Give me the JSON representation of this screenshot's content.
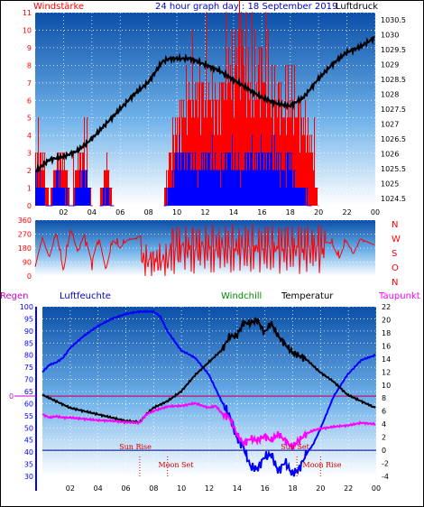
{
  "chart_data": [
    {
      "type": "line",
      "title": "24 hour graph day : 18 September 2019",
      "left_label": "Windstärke",
      "right_label": "Luftdruck",
      "x_ticks": [
        "02",
        "04",
        "06",
        "08",
        "10",
        "12",
        "14",
        "16",
        "18",
        "20",
        "22",
        "00"
      ],
      "y_left_ticks": [
        "0",
        "1",
        "2",
        "3",
        "4",
        "5",
        "6",
        "7",
        "8",
        "9",
        "10",
        "11"
      ],
      "y_right_ticks": [
        "1024.5",
        "1025",
        "1025.5",
        "1026",
        "1026.5",
        "1027",
        "1027.5",
        "1028",
        "1028.5",
        "1029",
        "1029.5",
        "1030",
        "1030.5"
      ],
      "ylim_left": [
        0,
        11
      ],
      "ylim_right": [
        1024.25,
        1030.75
      ],
      "series": [
        {
          "name": "Luftdruck",
          "color": "#000000",
          "axis": "right",
          "x": [
            0,
            1,
            2,
            3,
            4,
            5,
            6,
            7,
            8,
            9,
            9.5,
            10,
            11,
            12,
            13,
            14,
            15,
            16,
            17,
            18,
            19,
            20,
            21,
            22,
            23,
            24
          ],
          "values": [
            1025.4,
            1025.8,
            1025.9,
            1026.1,
            1026.5,
            1027.0,
            1027.5,
            1028.0,
            1028.4,
            1029.1,
            1029.2,
            1029.2,
            1029.2,
            1029.0,
            1028.8,
            1028.5,
            1028.2,
            1027.9,
            1027.7,
            1027.6,
            1027.9,
            1028.5,
            1029.0,
            1029.4,
            1029.6,
            1029.9
          ]
        },
        {
          "name": "Windstärke (Böen)",
          "color": "#ff0000",
          "axis": "left",
          "x": [
            0,
            0.5,
            1,
            1.5,
            2,
            2.5,
            3,
            3.5,
            4,
            4.5,
            5,
            5.5,
            6,
            6.5,
            7,
            7.5,
            8,
            8.5,
            9,
            9.5,
            10,
            10.5,
            11,
            11.5,
            12,
            12.5,
            13,
            13.5,
            14,
            14.5,
            15,
            15.5,
            16,
            16.5,
            17,
            17.5,
            18,
            18.5,
            19,
            19.5,
            20,
            20.5,
            21,
            21.5,
            22,
            22.5,
            23,
            23.5,
            24
          ],
          "values": [
            3,
            3,
            0,
            3,
            3,
            0,
            3,
            3,
            0,
            0,
            3,
            0,
            0,
            0,
            0,
            0,
            0,
            0,
            0,
            3,
            5,
            6,
            7,
            7,
            7,
            7,
            6,
            9,
            8,
            11,
            8,
            7,
            9,
            7,
            7,
            6,
            7,
            6,
            5,
            4,
            0,
            0,
            0,
            0,
            0,
            0,
            0,
            0,
            0
          ]
        },
        {
          "name": "Windstärke (Mittel)",
          "color": "#0000ff",
          "axis": "left",
          "x": [
            0,
            0.5,
            1,
            1.5,
            2,
            2.5,
            3,
            3.5,
            4,
            4.5,
            5,
            5.5,
            6,
            6.5,
            7,
            7.5,
            8,
            8.5,
            9,
            9.5,
            10,
            10.5,
            11,
            11.5,
            12,
            12.5,
            13,
            13.5,
            14,
            14.5,
            15,
            15.5,
            16,
            16.5,
            17,
            17.5,
            18,
            18.5,
            19,
            19.5,
            20,
            20.5,
            21,
            21.5,
            22,
            22.5,
            23,
            23.5,
            24
          ],
          "values": [
            2,
            1,
            0,
            2,
            1,
            0,
            1,
            2,
            0,
            0,
            1,
            0,
            0,
            0,
            0,
            0,
            0,
            0,
            0,
            1,
            3,
            3,
            3,
            2,
            3,
            3,
            2,
            3,
            3,
            2,
            3,
            3,
            3,
            3,
            3,
            2,
            3,
            1,
            1,
            0,
            0,
            0,
            0,
            0,
            0,
            0,
            0,
            0,
            0
          ]
        }
      ]
    },
    {
      "type": "line",
      "left_ticks": [
        "0",
        "90",
        "180",
        "270",
        "360"
      ],
      "right_labels": [
        "N",
        "W",
        "S",
        "O",
        "N"
      ],
      "ylim": [
        0,
        360
      ],
      "series": [
        {
          "name": "Windrichtung",
          "color": "#ff0000",
          "x": [
            0,
            0.5,
            1,
            1.5,
            2,
            2.5,
            3,
            3.5,
            4,
            4.5,
            5,
            5.5,
            6,
            6.5,
            7,
            7.5,
            8,
            8.5,
            9,
            9.5,
            10,
            10.5,
            11,
            11.5,
            12,
            12.5,
            13,
            13.5,
            14,
            14.5,
            15,
            15.5,
            16,
            16.5,
            17,
            17.5,
            18,
            18.5,
            19,
            19.5,
            20,
            20.5,
            21,
            21.5,
            22,
            22.5,
            23,
            23.5,
            24
          ],
          "values": [
            60,
            250,
            120,
            280,
            30,
            300,
            160,
            270,
            90,
            250,
            40,
            230,
            180,
            230,
            240,
            260,
            80,
            250,
            20,
            300,
            330,
            150,
            320,
            210,
            340,
            100,
            300,
            180,
            330,
            60,
            310,
            200,
            340,
            120,
            300,
            230,
            280,
            90,
            180,
            250,
            60,
            220,
            210,
            110,
            230,
            140,
            240,
            220,
            200
          ]
        }
      ]
    },
    {
      "type": "line",
      "legend": [
        "Regen",
        "Luftfeuchte",
        "Windchill",
        "Temperatur",
        "Taupunkt"
      ],
      "legend_colors": [
        "#cc00cc",
        "#0000cc",
        "#008800",
        "#000000",
        "#ff00ff"
      ],
      "x_ticks": [
        "02",
        "04",
        "06",
        "08",
        "10",
        "12",
        "14",
        "16",
        "18",
        "20",
        "22",
        "00"
      ],
      "y_left_ticks": [
        "30",
        "35",
        "40",
        "45",
        "50",
        "55",
        "60",
        "65",
        "70",
        "75",
        "80",
        "85",
        "90",
        "95",
        "100"
      ],
      "y_right_ticks": [
        "-4",
        "-2",
        "0",
        "2",
        "4",
        "6",
        "8",
        "10",
        "12",
        "14",
        "16",
        "18",
        "20",
        "22"
      ],
      "rain_marker": "0",
      "ylim_left": [
        30,
        100
      ],
      "ylim_right": [
        -4,
        22
      ],
      "annotations": [
        "Sun Rise",
        "Moon Set",
        "Sun Set",
        "Moon Rise"
      ],
      "series": [
        {
          "name": "Luftfeuchte",
          "color": "#0000ff",
          "axis": "left",
          "x": [
            0,
            0.5,
            1,
            1.5,
            2,
            3,
            4,
            5,
            6,
            7,
            7.5,
            8,
            8.5,
            9,
            10,
            11,
            12,
            13,
            13.5,
            14,
            14.5,
            15,
            15.5,
            16,
            16.5,
            17,
            17.5,
            18,
            18.5,
            19,
            19.5,
            20,
            21,
            22,
            23,
            24
          ],
          "values": [
            73,
            76,
            77,
            79,
            83,
            88,
            92,
            95,
            97,
            98,
            98,
            98,
            96,
            90,
            82,
            79,
            72,
            60,
            55,
            46,
            42,
            34,
            33,
            38,
            39,
            32,
            36,
            31,
            33,
            39,
            43,
            49,
            63,
            72,
            78,
            80
          ]
        },
        {
          "name": "Temperatur",
          "color": "#000000",
          "axis": "right",
          "x": [
            0,
            0.5,
            1,
            2,
            3,
            4,
            5,
            6,
            7,
            7.5,
            8,
            9,
            10,
            11,
            12,
            13,
            13.5,
            14,
            14.5,
            15,
            15.5,
            16,
            16.5,
            17,
            18,
            18.5,
            19,
            20,
            21,
            22,
            23,
            24
          ],
          "values": [
            8.5,
            8,
            7.5,
            6.5,
            6,
            5.5,
            5,
            4.5,
            4.3,
            5.5,
            6.5,
            7.5,
            9,
            11.5,
            13.5,
            15.5,
            17.5,
            17.5,
            19.5,
            19.5,
            20,
            18,
            19.5,
            17.5,
            15,
            14.5,
            14,
            12,
            10.5,
            8.5,
            7.5,
            6.5
          ]
        },
        {
          "name": "Taupunkt",
          "color": "#ff00ff",
          "axis": "right",
          "x": [
            0,
            0.5,
            1,
            1.5,
            2,
            3,
            4,
            5,
            6,
            7,
            7.5,
            8,
            9,
            10,
            11,
            12,
            12.5,
            13,
            13.5,
            14,
            14.5,
            15,
            15.5,
            16,
            16.5,
            17,
            17.5,
            18,
            18.5,
            19,
            19.5,
            20,
            21,
            22,
            23,
            24
          ],
          "values": [
            5.5,
            5,
            5.2,
            5,
            5,
            4.8,
            4.6,
            4.5,
            4.3,
            4.2,
            5.5,
            6,
            6.7,
            6.8,
            7.2,
            6.5,
            6.8,
            5.5,
            5,
            2.5,
            1,
            1.8,
            1.5,
            2.2,
            1.5,
            2.5,
            1.5,
            0.5,
            1.5,
            2.5,
            3,
            3.3,
            3.6,
            3.8,
            4.2,
            4
          ]
        }
      ]
    }
  ]
}
